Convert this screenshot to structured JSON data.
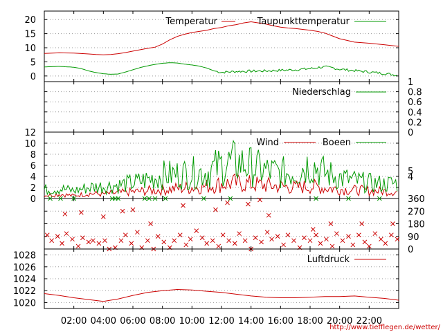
{
  "chart_data": [
    {
      "type": "line",
      "title": "",
      "grid": true,
      "legend_position": "top-right",
      "ylim": [
        -2,
        23
      ],
      "y_ticks": [
        0,
        5,
        10,
        15,
        20
      ],
      "x_range": [
        0,
        24
      ],
      "series": [
        {
          "name": "Temperatur",
          "color": "#cc0000",
          "x": [
            0,
            1,
            2,
            3,
            3.5,
            4,
            4.5,
            5,
            5.5,
            6,
            6.5,
            7,
            7.5,
            8,
            8.5,
            9,
            9.5,
            10,
            10.5,
            11,
            11.5,
            12,
            12.5,
            13,
            13.5,
            14,
            14.5,
            15,
            15.5,
            16,
            16.5,
            17,
            17.5,
            18,
            18.5,
            19,
            19.5,
            20,
            20.5,
            21,
            22,
            23,
            24
          ],
          "y": [
            8,
            8.2,
            8.1,
            7.8,
            7.6,
            7.5,
            7.6,
            7.9,
            8.3,
            8.8,
            9.3,
            9.8,
            10.2,
            11.3,
            12.8,
            14,
            14.8,
            15.4,
            15.8,
            16.2,
            16.8,
            17.2,
            17.8,
            18.2,
            18.8,
            19.2,
            18.8,
            18.4,
            17.8,
            17.3,
            17,
            16.8,
            16.5,
            16.2,
            15.8,
            15.2,
            14.2,
            13.2,
            12.6,
            12,
            11.6,
            11.1,
            10.5
          ]
        },
        {
          "name": "Taupunkttemperatur",
          "color": "#009900",
          "x": [
            0,
            1,
            2,
            2.5,
            3,
            3.5,
            4,
            4.5,
            5,
            5.5,
            6,
            6.5,
            7,
            7.5,
            8,
            8.5,
            9,
            9.5,
            10,
            10.5,
            11,
            11.5,
            12,
            13,
            14,
            15,
            16,
            17,
            18,
            18.5,
            19,
            19.5,
            20,
            21,
            22,
            23,
            24
          ],
          "y": [
            3.2,
            3.4,
            3.1,
            2.6,
            1.8,
            1.2,
            0.8,
            0.6,
            0.7,
            1.4,
            2.2,
            3,
            3.6,
            4.1,
            4.5,
            4.7,
            4.6,
            4.2,
            3.9,
            3.5,
            2.8,
            1.8,
            1.3,
            1.6,
            1.7,
            1.8,
            2,
            2.2,
            2.6,
            3,
            3.2,
            2.9,
            2.4,
            1.9,
            1.4,
            0.9,
            0.2
          ]
        }
      ]
    },
    {
      "type": "line",
      "title": "",
      "grid": true,
      "legend_position": "top-right",
      "ylim": [
        0,
        1
      ],
      "y_ticks": [
        0,
        0.2,
        0.4,
        0.6,
        0.8,
        1
      ],
      "y_axis_side": "right",
      "series": [
        {
          "name": "Niederschlag",
          "color": "#009900",
          "x": [
            0,
            24
          ],
          "y": [
            0,
            0
          ]
        }
      ]
    },
    {
      "type": "line",
      "title": "",
      "grid": true,
      "legend_position": "top-right",
      "ylim": [
        0,
        12
      ],
      "y_ticks": [
        0,
        2,
        4,
        6,
        8,
        10,
        12
      ],
      "right_ticks": [
        4,
        5
      ],
      "series": [
        {
          "name": "Wind",
          "color": "#cc0000",
          "x": [
            0,
            1,
            2,
            3,
            4,
            5,
            6,
            7,
            8,
            9,
            10,
            11,
            12,
            13,
            14,
            15,
            16,
            17,
            18,
            19,
            20,
            21,
            22,
            23,
            24
          ],
          "y": [
            0.6,
            0.8,
            0.5,
            0.9,
            0.8,
            1.0,
            1.2,
            1.4,
            1.6,
            1.8,
            2.0,
            2.2,
            2.6,
            2.8,
            2.6,
            2.4,
            2.2,
            2.0,
            2.2,
            1.9,
            1.7,
            1.5,
            1.4,
            1.3,
            1.2
          ]
        },
        {
          "name": "Boeen",
          "color": "#009900",
          "x": [
            0,
            1,
            2,
            3,
            4,
            5,
            6,
            7,
            8,
            9,
            10,
            11,
            12,
            13,
            14,
            15,
            16,
            17,
            18,
            19,
            20,
            21,
            22,
            23,
            24
          ],
          "y": [
            1.6,
            1.8,
            1.4,
            2.0,
            2.2,
            2.4,
            2.8,
            3.4,
            4.2,
            4.4,
            4.6,
            4.8,
            6.0,
            6.6,
            5.8,
            5.0,
            4.6,
            4.8,
            6.4,
            4.6,
            3.8,
            3.2,
            2.8,
            2.6,
            2.8
          ]
        }
      ]
    },
    {
      "type": "scatter",
      "title": "",
      "grid": true,
      "ylim": [
        0,
        360
      ],
      "y_ticks": [
        0,
        90,
        180,
        270,
        360
      ],
      "y_axis_side": "right",
      "marker": "x",
      "series": [
        {
          "name": "",
          "color": "#cc0000",
          "x": [
            0.2,
            0.5,
            0.9,
            1.2,
            1.5,
            1.9,
            2.3,
            2.6,
            3.0,
            3.3,
            3.7,
            4.1,
            4.4,
            4.8,
            5.2,
            5.5,
            5.9,
            6.3,
            6.6,
            7.0,
            7.4,
            7.7,
            8.1,
            8.5,
            8.8,
            9.2,
            9.6,
            9.9,
            10.3,
            10.7,
            11.0,
            11.4,
            11.8,
            12.1,
            12.5,
            12.9,
            13.2,
            13.6,
            14.0,
            14.3,
            14.7,
            15.1,
            15.4,
            15.8,
            16.2,
            16.5,
            16.9,
            17.3,
            17.6,
            18.0,
            18.4,
            18.7,
            19.1,
            19.5,
            19.8,
            20.2,
            20.6,
            20.9,
            21.3,
            21.7,
            22.0,
            22.4,
            22.8,
            23.1,
            23.5,
            23.9,
            1.4,
            2.5,
            4.0,
            5.3,
            6.0,
            7.2,
            9.4,
            11.6,
            12.4,
            13.8,
            14.6,
            15.2,
            18.2,
            19.4,
            21.5,
            23.6
          ],
          "y": [
            100,
            60,
            90,
            40,
            110,
            70,
            20,
            80,
            50,
            60,
            40,
            60,
            0,
            10,
            60,
            100,
            40,
            120,
            10,
            60,
            0,
            90,
            50,
            10,
            60,
            100,
            30,
            70,
            130,
            80,
            40,
            60,
            20,
            100,
            60,
            40,
            110,
            60,
            0,
            80,
            50,
            120,
            70,
            90,
            30,
            100,
            60,
            10,
            80,
            60,
            100,
            40,
            70,
            20,
            110,
            60,
            90,
            30,
            100,
            50,
            20,
            110,
            70,
            40,
            100,
            70,
            250,
            260,
            230,
            270,
            280,
            180,
            310,
            280,
            330,
            320,
            350,
            240,
            140,
            180,
            180,
            180
          ]
        },
        {
          "name": "",
          "color": "#009900",
          "x": [
            0.4,
            1.1,
            2.0,
            4.6,
            4.8,
            5.0,
            6.8,
            7.1,
            7.5,
            8.2,
            10.8,
            12.6,
            18.4,
            20.6,
            22.7
          ],
          "y": [
            360,
            360,
            360,
            360,
            360,
            360,
            360,
            360,
            360,
            360,
            360,
            360,
            360,
            360,
            360
          ]
        }
      ]
    },
    {
      "type": "line",
      "title": "",
      "grid": true,
      "legend_position": "top-right",
      "ylim": [
        1019,
        1029
      ],
      "y_ticks": [
        1020,
        1022,
        1024,
        1026,
        1028
      ],
      "series": [
        {
          "name": "Luftdruck",
          "color": "#cc0000",
          "x": [
            0,
            1,
            2,
            3,
            4,
            5,
            6,
            7,
            8,
            9,
            10,
            11,
            12,
            13,
            14,
            15,
            16,
            17,
            18,
            19,
            20,
            21,
            22,
            23,
            24
          ],
          "y": [
            1021.5,
            1021.2,
            1020.8,
            1020.5,
            1020.2,
            1020.6,
            1021.2,
            1021.7,
            1022.0,
            1022.2,
            1022.1,
            1021.9,
            1021.7,
            1021.4,
            1021.1,
            1020.9,
            1020.8,
            1020.8,
            1020.9,
            1021.0,
            1021.0,
            1021.1,
            1020.9,
            1020.7,
            1020.4
          ]
        }
      ]
    }
  ],
  "x_axis": {
    "tick_labels": [
      "02:00",
      "04:00",
      "06:00",
      "08:00",
      "10:00",
      "12:00",
      "14:00",
      "16:00",
      "18:00",
      "20:00",
      "22:00"
    ],
    "tick_hours": [
      2,
      4,
      6,
      8,
      10,
      12,
      14,
      16,
      18,
      20,
      22
    ]
  },
  "footer_url": "http://www.tiefflegen.de/wetter/"
}
